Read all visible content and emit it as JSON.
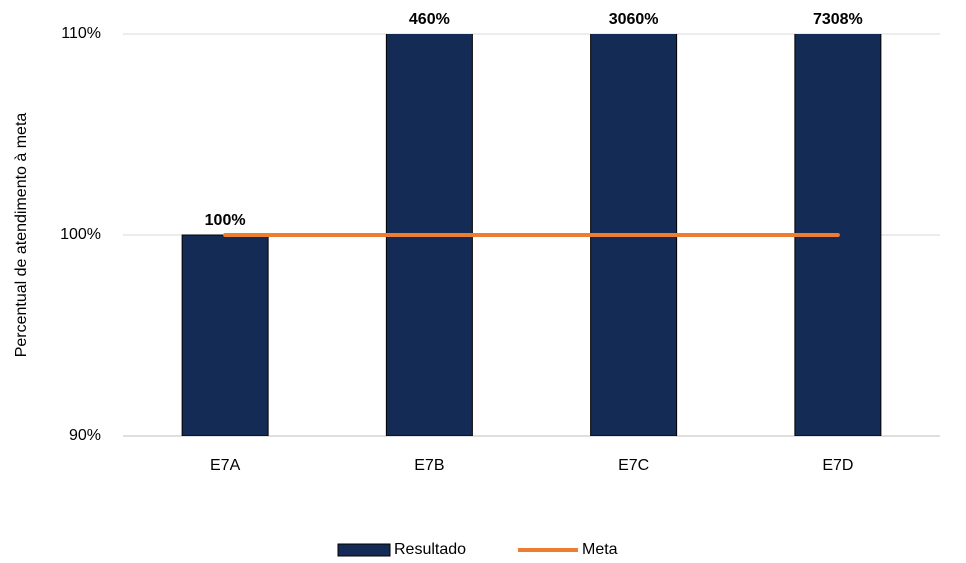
{
  "chart_data": {
    "type": "bar",
    "y_label": "Percentual de atendimento à meta",
    "categories": [
      "E7A",
      "E7B",
      "E7C",
      "E7D"
    ],
    "series": [
      {
        "name": "Resultado",
        "type": "bar",
        "color": "#142b55",
        "values": [
          100,
          460,
          3060,
          7308
        ],
        "value_labels": [
          "100%",
          "460%",
          "3060%",
          "7308%"
        ]
      },
      {
        "name": "Meta",
        "type": "line",
        "color": "#ed7d31",
        "values": [
          100,
          100,
          100,
          100
        ]
      }
    ],
    "ylim": [
      90,
      110
    ],
    "yticks": [
      {
        "value": 90,
        "label": "90%"
      },
      {
        "value": 100,
        "label": "100%"
      },
      {
        "value": 110,
        "label": "110%"
      }
    ],
    "grid": true,
    "legend": "bottom"
  }
}
